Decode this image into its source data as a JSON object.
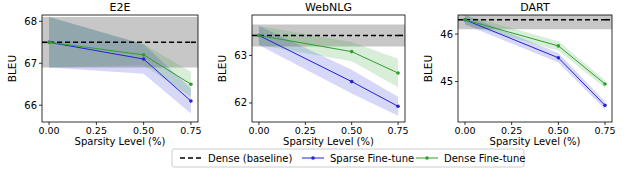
{
  "chart_data": [
    {
      "type": "line",
      "title": "E2E",
      "x_label": "Sparsity Level (%)",
      "y_label": "BLEU",
      "legend": "bottom",
      "x": [
        0,
        0.5,
        0.75
      ],
      "xlim": [
        -0.0375,
        0.7875
      ],
      "xticks": [
        {
          "value": 0,
          "label": "0.00"
        },
        {
          "value": 0.25,
          "label": "0.25"
        },
        {
          "value": 0.5,
          "label": "0.50"
        },
        {
          "value": 0.75,
          "label": "0.75"
        }
      ],
      "ylim": [
        65.6,
        68.15
      ],
      "yticks": [
        66,
        67,
        68
      ],
      "series": [
        {
          "name": "Dense (baseline)",
          "color": "#000000",
          "line_style": "dashed",
          "marker": "none",
          "values": [
            67.5,
            67.5,
            67.5
          ],
          "error": [
            0.6,
            0.6,
            0.6
          ]
        },
        {
          "name": "Sparse Fine-tune",
          "color": "#2323d8",
          "line_style": "solid",
          "marker": "circle",
          "values": [
            67.5,
            67.1,
            66.1
          ],
          "error": [
            0.6,
            0.35,
            0.3
          ]
        },
        {
          "name": "Dense Fine-tune",
          "color": "#2ca02c",
          "line_style": "solid",
          "marker": "circle",
          "values": [
            67.5,
            67.2,
            66.5
          ],
          "error": [
            0.6,
            0.25,
            0.3
          ]
        }
      ]
    },
    {
      "type": "line",
      "title": "WebNLG",
      "x_label": "Sparsity Level (%)",
      "y_label": "BLEU",
      "legend": "bottom",
      "x": [
        0,
        0.5,
        0.75
      ],
      "xlim": [
        -0.0375,
        0.7875
      ],
      "xticks": [
        {
          "value": 0,
          "label": "0.00"
        },
        {
          "value": 0.25,
          "label": "0.25"
        },
        {
          "value": 0.5,
          "label": "0.50"
        },
        {
          "value": 0.75,
          "label": "0.75"
        }
      ],
      "ylim": [
        61.6,
        63.85
      ],
      "yticks": [
        62,
        63
      ],
      "series": [
        {
          "name": "Dense (baseline)",
          "color": "#000000",
          "line_style": "dashed",
          "marker": "none",
          "values": [
            63.42,
            63.42,
            63.42
          ],
          "error": [
            0.23,
            0.23,
            0.23
          ]
        },
        {
          "name": "Sparse Fine-tune",
          "color": "#2323d8",
          "line_style": "solid",
          "marker": "circle",
          "values": [
            63.42,
            62.45,
            61.93
          ],
          "error": [
            0.2,
            0.25,
            0.2
          ]
        },
        {
          "name": "Dense Fine-tune",
          "color": "#2ca02c",
          "line_style": "solid",
          "marker": "circle",
          "values": [
            63.42,
            63.08,
            62.63
          ],
          "error": [
            0.2,
            0.2,
            0.3
          ]
        }
      ]
    },
    {
      "type": "line",
      "title": "DART",
      "x_label": "Sparsity Level (%)",
      "y_label": "BLEU",
      "legend": "bottom",
      "x": [
        0,
        0.5,
        0.75
      ],
      "xlim": [
        -0.0375,
        0.7875
      ],
      "xticks": [
        {
          "value": 0,
          "label": "0.00"
        },
        {
          "value": 0.25,
          "label": "0.25"
        },
        {
          "value": 0.5,
          "label": "0.50"
        },
        {
          "value": 0.75,
          "label": "0.75"
        }
      ],
      "ylim": [
        44.15,
        46.4
      ],
      "yticks": [
        45,
        46
      ],
      "series": [
        {
          "name": "Dense (baseline)",
          "color": "#000000",
          "line_style": "dashed",
          "marker": "none",
          "values": [
            46.3,
            46.3,
            46.3
          ],
          "error": [
            0.2,
            0.2,
            0.2
          ]
        },
        {
          "name": "Sparse Fine-tune",
          "color": "#2323d8",
          "line_style": "solid",
          "marker": "circle",
          "values": [
            46.3,
            45.5,
            44.5
          ],
          "error": [
            0.1,
            0.1,
            0.08
          ]
        },
        {
          "name": "Dense Fine-tune",
          "color": "#2ca02c",
          "line_style": "solid",
          "marker": "circle",
          "values": [
            46.3,
            45.75,
            44.95
          ],
          "error": [
            0.1,
            0.1,
            0.08
          ]
        }
      ]
    }
  ]
}
